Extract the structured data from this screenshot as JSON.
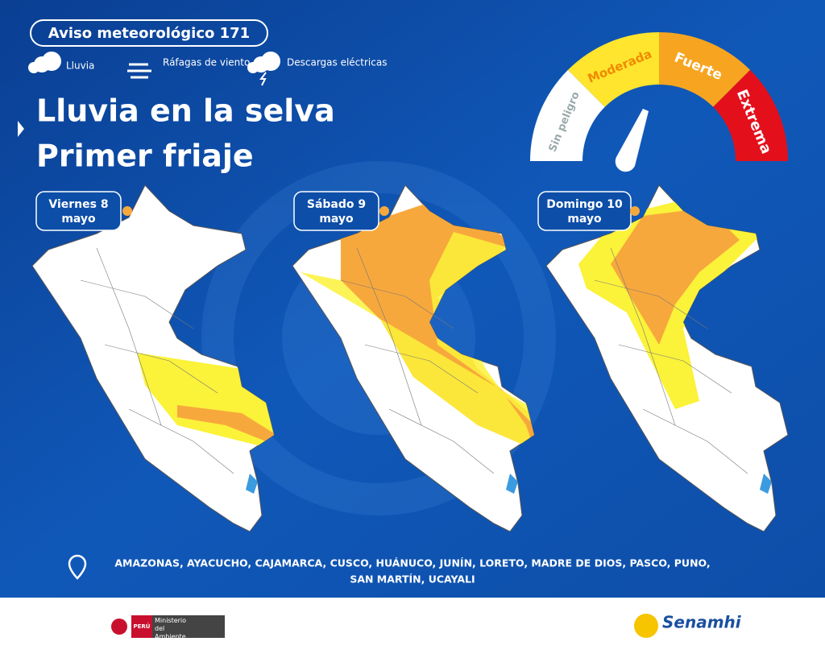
{
  "header": {
    "badge": "Aviso meteorológico 171"
  },
  "legend": [
    {
      "label": "Lluvia"
    },
    {
      "label": "Ráfagas de viento"
    },
    {
      "label": "Descargas eléctricas"
    }
  ],
  "title": {
    "line1": "Lluvia en la selva",
    "line2": "Primer friaje"
  },
  "gauge": {
    "levels": [
      "Sin peligro",
      "Moderada",
      "Fuerte",
      "Extrema"
    ]
  },
  "days": [
    "Viernes 8 mayo",
    "Sábado 9 mayo",
    "Domingo 10 mayo"
  ],
  "regions": {
    "line1": "AMAZONAS, AYACUCHO, CAJAMARCA, CUSCO, HUÁNUCO, JUNÍN, LORETO, MADRE DE DIOS, PASCO, PUNO,",
    "line2": "SAN MARTÍN, UCAYALI"
  },
  "footer": {
    "country": "PERÚ",
    "ministry": "Ministerio del Ambiente",
    "agency": "Senamhi"
  }
}
